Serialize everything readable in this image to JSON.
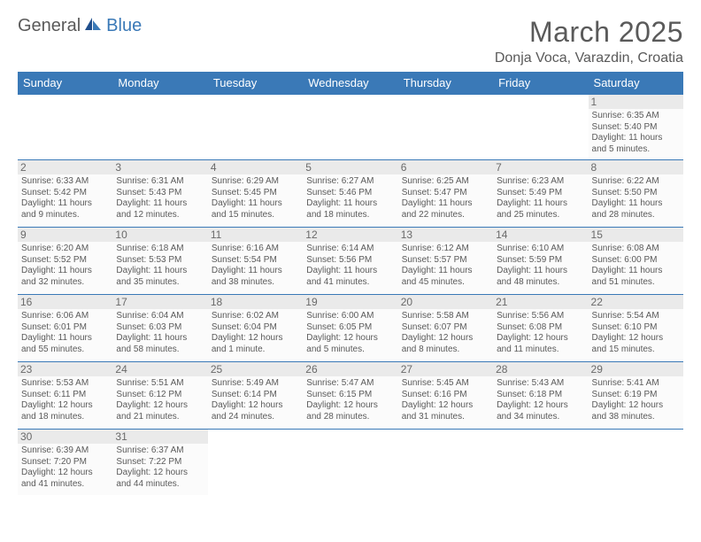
{
  "brand": {
    "general": "General",
    "blue": "Blue"
  },
  "title": "March 2025",
  "location": "Donja Voca, Varazdin, Croatia",
  "colors": {
    "header_bg": "#3a79b7",
    "text": "#5a5a5a",
    "cell_bg": "#fbfbfb",
    "daynum_bg": "#eaeaea",
    "border": "#3a79b7"
  },
  "weekdays": [
    "Sunday",
    "Monday",
    "Tuesday",
    "Wednesday",
    "Thursday",
    "Friday",
    "Saturday"
  ],
  "weeks": [
    [
      null,
      null,
      null,
      null,
      null,
      null,
      {
        "n": "1",
        "sr": "Sunrise: 6:35 AM",
        "ss": "Sunset: 5:40 PM",
        "d1": "Daylight: 11 hours",
        "d2": "and 5 minutes."
      }
    ],
    [
      {
        "n": "2",
        "sr": "Sunrise: 6:33 AM",
        "ss": "Sunset: 5:42 PM",
        "d1": "Daylight: 11 hours",
        "d2": "and 9 minutes."
      },
      {
        "n": "3",
        "sr": "Sunrise: 6:31 AM",
        "ss": "Sunset: 5:43 PM",
        "d1": "Daylight: 11 hours",
        "d2": "and 12 minutes."
      },
      {
        "n": "4",
        "sr": "Sunrise: 6:29 AM",
        "ss": "Sunset: 5:45 PM",
        "d1": "Daylight: 11 hours",
        "d2": "and 15 minutes."
      },
      {
        "n": "5",
        "sr": "Sunrise: 6:27 AM",
        "ss": "Sunset: 5:46 PM",
        "d1": "Daylight: 11 hours",
        "d2": "and 18 minutes."
      },
      {
        "n": "6",
        "sr": "Sunrise: 6:25 AM",
        "ss": "Sunset: 5:47 PM",
        "d1": "Daylight: 11 hours",
        "d2": "and 22 minutes."
      },
      {
        "n": "7",
        "sr": "Sunrise: 6:23 AM",
        "ss": "Sunset: 5:49 PM",
        "d1": "Daylight: 11 hours",
        "d2": "and 25 minutes."
      },
      {
        "n": "8",
        "sr": "Sunrise: 6:22 AM",
        "ss": "Sunset: 5:50 PM",
        "d1": "Daylight: 11 hours",
        "d2": "and 28 minutes."
      }
    ],
    [
      {
        "n": "9",
        "sr": "Sunrise: 6:20 AM",
        "ss": "Sunset: 5:52 PM",
        "d1": "Daylight: 11 hours",
        "d2": "and 32 minutes."
      },
      {
        "n": "10",
        "sr": "Sunrise: 6:18 AM",
        "ss": "Sunset: 5:53 PM",
        "d1": "Daylight: 11 hours",
        "d2": "and 35 minutes."
      },
      {
        "n": "11",
        "sr": "Sunrise: 6:16 AM",
        "ss": "Sunset: 5:54 PM",
        "d1": "Daylight: 11 hours",
        "d2": "and 38 minutes."
      },
      {
        "n": "12",
        "sr": "Sunrise: 6:14 AM",
        "ss": "Sunset: 5:56 PM",
        "d1": "Daylight: 11 hours",
        "d2": "and 41 minutes."
      },
      {
        "n": "13",
        "sr": "Sunrise: 6:12 AM",
        "ss": "Sunset: 5:57 PM",
        "d1": "Daylight: 11 hours",
        "d2": "and 45 minutes."
      },
      {
        "n": "14",
        "sr": "Sunrise: 6:10 AM",
        "ss": "Sunset: 5:59 PM",
        "d1": "Daylight: 11 hours",
        "d2": "and 48 minutes."
      },
      {
        "n": "15",
        "sr": "Sunrise: 6:08 AM",
        "ss": "Sunset: 6:00 PM",
        "d1": "Daylight: 11 hours",
        "d2": "and 51 minutes."
      }
    ],
    [
      {
        "n": "16",
        "sr": "Sunrise: 6:06 AM",
        "ss": "Sunset: 6:01 PM",
        "d1": "Daylight: 11 hours",
        "d2": "and 55 minutes."
      },
      {
        "n": "17",
        "sr": "Sunrise: 6:04 AM",
        "ss": "Sunset: 6:03 PM",
        "d1": "Daylight: 11 hours",
        "d2": "and 58 minutes."
      },
      {
        "n": "18",
        "sr": "Sunrise: 6:02 AM",
        "ss": "Sunset: 6:04 PM",
        "d1": "Daylight: 12 hours",
        "d2": "and 1 minute."
      },
      {
        "n": "19",
        "sr": "Sunrise: 6:00 AM",
        "ss": "Sunset: 6:05 PM",
        "d1": "Daylight: 12 hours",
        "d2": "and 5 minutes."
      },
      {
        "n": "20",
        "sr": "Sunrise: 5:58 AM",
        "ss": "Sunset: 6:07 PM",
        "d1": "Daylight: 12 hours",
        "d2": "and 8 minutes."
      },
      {
        "n": "21",
        "sr": "Sunrise: 5:56 AM",
        "ss": "Sunset: 6:08 PM",
        "d1": "Daylight: 12 hours",
        "d2": "and 11 minutes."
      },
      {
        "n": "22",
        "sr": "Sunrise: 5:54 AM",
        "ss": "Sunset: 6:10 PM",
        "d1": "Daylight: 12 hours",
        "d2": "and 15 minutes."
      }
    ],
    [
      {
        "n": "23",
        "sr": "Sunrise: 5:53 AM",
        "ss": "Sunset: 6:11 PM",
        "d1": "Daylight: 12 hours",
        "d2": "and 18 minutes."
      },
      {
        "n": "24",
        "sr": "Sunrise: 5:51 AM",
        "ss": "Sunset: 6:12 PM",
        "d1": "Daylight: 12 hours",
        "d2": "and 21 minutes."
      },
      {
        "n": "25",
        "sr": "Sunrise: 5:49 AM",
        "ss": "Sunset: 6:14 PM",
        "d1": "Daylight: 12 hours",
        "d2": "and 24 minutes."
      },
      {
        "n": "26",
        "sr": "Sunrise: 5:47 AM",
        "ss": "Sunset: 6:15 PM",
        "d1": "Daylight: 12 hours",
        "d2": "and 28 minutes."
      },
      {
        "n": "27",
        "sr": "Sunrise: 5:45 AM",
        "ss": "Sunset: 6:16 PM",
        "d1": "Daylight: 12 hours",
        "d2": "and 31 minutes."
      },
      {
        "n": "28",
        "sr": "Sunrise: 5:43 AM",
        "ss": "Sunset: 6:18 PM",
        "d1": "Daylight: 12 hours",
        "d2": "and 34 minutes."
      },
      {
        "n": "29",
        "sr": "Sunrise: 5:41 AM",
        "ss": "Sunset: 6:19 PM",
        "d1": "Daylight: 12 hours",
        "d2": "and 38 minutes."
      }
    ],
    [
      {
        "n": "30",
        "sr": "Sunrise: 6:39 AM",
        "ss": "Sunset: 7:20 PM",
        "d1": "Daylight: 12 hours",
        "d2": "and 41 minutes."
      },
      {
        "n": "31",
        "sr": "Sunrise: 6:37 AM",
        "ss": "Sunset: 7:22 PM",
        "d1": "Daylight: 12 hours",
        "d2": "and 44 minutes."
      },
      null,
      null,
      null,
      null,
      null
    ]
  ]
}
